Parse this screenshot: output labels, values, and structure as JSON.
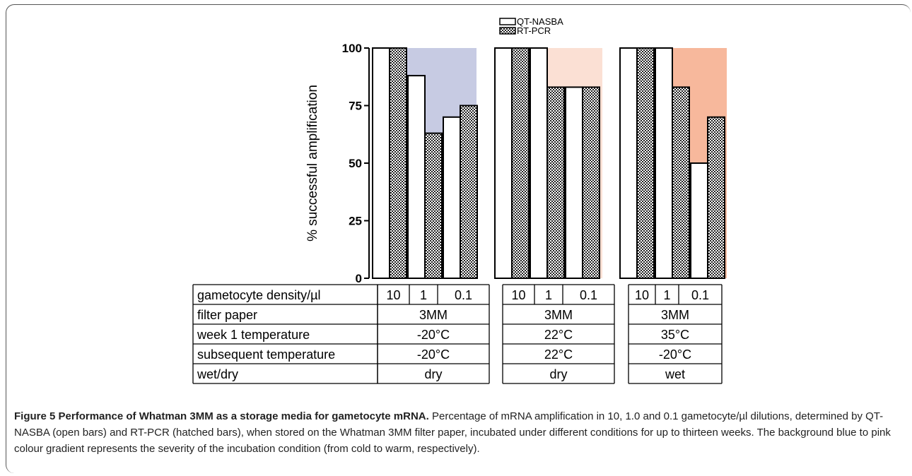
{
  "chart_data": {
    "type": "bar",
    "ylabel": "% successful amplification",
    "ylim": [
      0,
      100
    ],
    "yticks": [
      0,
      25,
      50,
      75,
      100
    ],
    "series": [
      {
        "name": "QT-NASBA",
        "pattern": "open"
      },
      {
        "name": "RT-PCR",
        "pattern": "hatched"
      }
    ],
    "groups": [
      {
        "bg_color": "#c7cbe3",
        "gametocyte_density": [
          "10",
          "1",
          "0.1"
        ],
        "qt_nasba": [
          100,
          88,
          70
        ],
        "rt_pcr": [
          100,
          63,
          75
        ],
        "filter_paper": "3MM",
        "week1_temperature": "-20°C",
        "subsequent_temperature": "-20°C",
        "wet_dry": "dry"
      },
      {
        "bg_color": "#fbe0d4",
        "gametocyte_density": [
          "10",
          "1",
          "0.1"
        ],
        "qt_nasba": [
          100,
          100,
          83
        ],
        "rt_pcr": [
          100,
          83,
          83
        ],
        "filter_paper": "3MM",
        "week1_temperature": "22°C",
        "subsequent_temperature": "22°C",
        "wet_dry": "dry"
      },
      {
        "bg_color": "#f7b89c",
        "gametocyte_density": [
          "10",
          "1",
          "0.1"
        ],
        "qt_nasba": [
          100,
          100,
          50
        ],
        "rt_pcr": [
          100,
          83,
          70
        ],
        "filter_paper": "3MM",
        "week1_temperature": "35°C",
        "subsequent_temperature": "-20°C",
        "wet_dry": "wet"
      }
    ],
    "table_row_labels": [
      "gametocyte density/µl",
      "filter paper",
      "week 1 temperature",
      "subsequent temperature",
      "wet/dry"
    ]
  },
  "caption": {
    "title": "Figure 5 Performance of Whatman 3MM as a storage media for gametocyte mRNA.",
    "body": " Percentage of mRNA amplification in 10, 1.0 and 0.1 gametocyte/µl dilutions, determined by QT-NASBA (open bars) and RT-PCR (hatched bars), when stored on the Whatman 3MM filter paper, incubated under different conditions for up to thirteen weeks. The background blue to pink colour gradient represents the severity of the incubation condition (from cold to warm, respectively)."
  }
}
